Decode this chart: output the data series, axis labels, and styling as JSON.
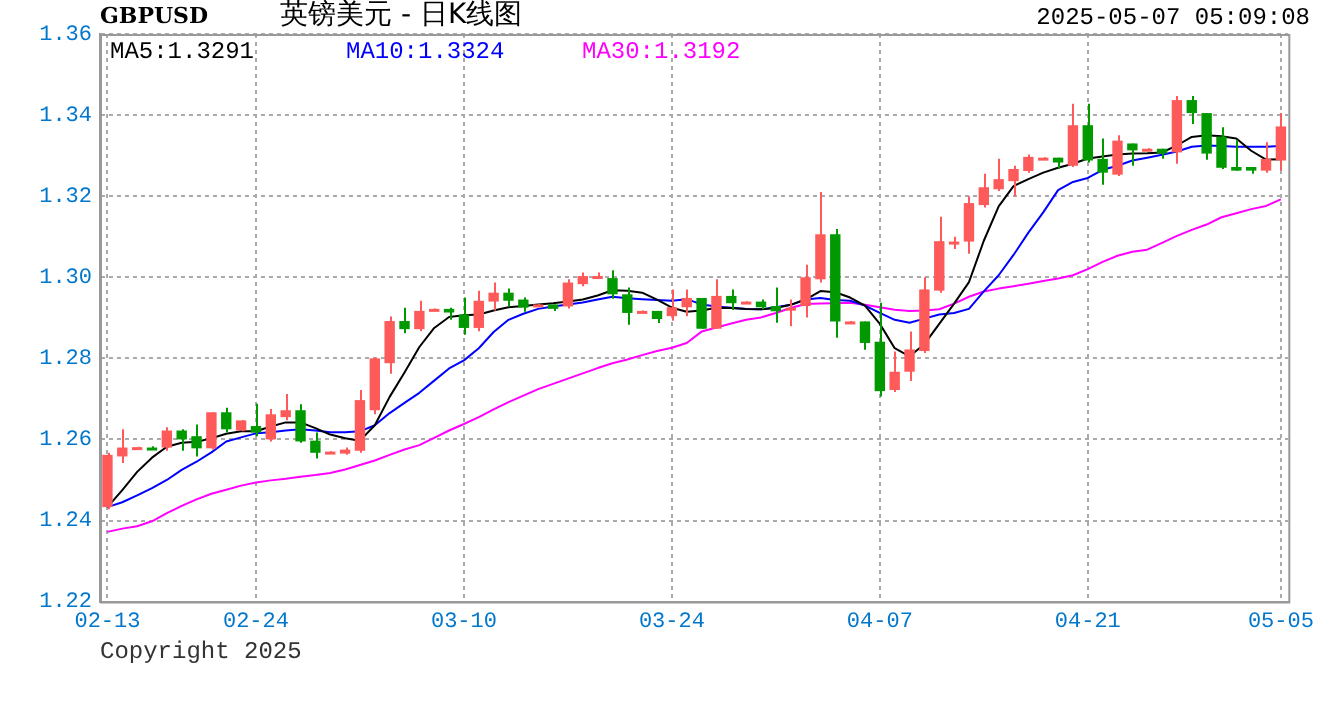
{
  "chart_data": {
    "type": "candlestick",
    "title": "英镑美元 - 日K线图",
    "subtitle": "GBPUSD",
    "annotations": [
      "2025-05-07 05:09:08",
      "Copyright 2025"
    ],
    "categories": [
      "02-13",
      null,
      null,
      null,
      null,
      null,
      null,
      null,
      null,
      null,
      "02-24",
      null,
      null,
      null,
      null,
      null,
      null,
      null,
      null,
      null,
      null,
      null,
      null,
      null,
      "03-10",
      null,
      null,
      null,
      null,
      null,
      null,
      null,
      null,
      null,
      null,
      null,
      null,
      null,
      "03-24",
      null,
      null,
      null,
      null,
      null,
      null,
      null,
      null,
      null,
      null,
      null,
      null,
      null,
      "04-07",
      null,
      null,
      null,
      null,
      null,
      null,
      null,
      null,
      null,
      null,
      null,
      null,
      null,
      "04-21",
      null,
      null,
      null,
      null,
      null,
      null,
      null,
      null,
      null,
      null,
      null,
      null,
      "05-05"
    ],
    "ohlc": [
      [
        1.2433,
        1.2567,
        1.2428,
        1.2562
      ],
      [
        1.2558,
        1.2625,
        1.2542,
        1.258
      ],
      [
        1.258,
        1.2582,
        1.2578,
        1.2581
      ],
      [
        1.258,
        1.2583,
        1.2575,
        1.2578
      ],
      [
        1.258,
        1.263,
        1.2572,
        1.2622
      ],
      [
        1.2622,
        1.2625,
        1.2572,
        1.26
      ],
      [
        1.2608,
        1.2637,
        1.2558,
        1.2578
      ],
      [
        1.2578,
        1.2667,
        1.2575,
        1.2667
      ],
      [
        1.2667,
        1.2678,
        1.2617,
        1.2625
      ],
      [
        1.2622,
        1.2647,
        1.262,
        1.2647
      ],
      [
        1.2633,
        1.2688,
        1.2608,
        1.2617
      ],
      [
        1.26,
        1.2675,
        1.2595,
        1.2662
      ],
      [
        1.2655,
        1.2712,
        1.2647,
        1.2672
      ],
      [
        1.2672,
        1.2687,
        1.2592,
        1.2595
      ],
      [
        1.2597,
        1.2617,
        1.2553,
        1.2567
      ],
      [
        1.2568,
        1.2571,
        1.2567,
        1.257
      ],
      [
        1.2565,
        1.258,
        1.2562,
        1.2575
      ],
      [
        1.2572,
        1.2722,
        1.2567,
        1.2697
      ],
      [
        1.2672,
        1.2802,
        1.2662,
        1.28
      ],
      [
        1.2788,
        1.2903,
        1.2762,
        1.2892
      ],
      [
        1.2892,
        1.2925,
        1.2862,
        1.2872
      ],
      [
        1.2872,
        1.2942,
        1.2867,
        1.2917
      ],
      [
        1.2921,
        1.2923,
        1.292,
        1.2922
      ],
      [
        1.2922,
        1.2925,
        1.2895,
        1.2913
      ],
      [
        1.2908,
        1.295,
        1.2858,
        1.2875
      ],
      [
        1.2875,
        1.2967,
        1.2867,
        1.2942
      ],
      [
        1.294,
        1.2987,
        1.2918,
        1.2962
      ],
      [
        1.2962,
        1.2972,
        1.2928,
        1.2942
      ],
      [
        1.2945,
        1.295,
        1.2915,
        1.2925
      ],
      [
        1.2932,
        1.2934,
        1.2931,
        1.2933
      ],
      [
        1.2933,
        1.2933,
        1.2917,
        1.2922
      ],
      [
        1.2928,
        1.2995,
        1.2923,
        1.2987
      ],
      [
        1.2983,
        1.3012,
        1.2978,
        1.3003
      ],
      [
        1.3,
        1.3012,
        1.2997,
        1.3003
      ],
      [
        1.2998,
        1.3017,
        1.2947,
        1.2958
      ],
      [
        1.2958,
        1.2975,
        1.2883,
        1.2912
      ],
      [
        1.2916,
        1.2918,
        1.2915,
        1.2917
      ],
      [
        1.2917,
        1.2917,
        1.2887,
        1.2897
      ],
      [
        1.2904,
        1.297,
        1.2893,
        1.2926
      ],
      [
        1.2926,
        1.297,
        1.2904,
        1.2949
      ],
      [
        1.2949,
        1.2949,
        1.2873,
        1.2873
      ],
      [
        1.2873,
        1.2995,
        1.2873,
        1.2954
      ],
      [
        1.2954,
        1.297,
        1.2919,
        1.2936
      ],
      [
        1.2939,
        1.2941,
        1.2938,
        1.294
      ],
      [
        1.294,
        1.2945,
        1.2921,
        1.2926
      ],
      [
        1.2929,
        1.2975,
        1.2888,
        1.2916
      ],
      [
        1.292,
        1.2945,
        1.2879,
        1.2925
      ],
      [
        1.2929,
        1.3031,
        1.2901,
        1.3
      ],
      [
        1.2995,
        1.321,
        1.2987,
        1.3106
      ],
      [
        1.3106,
        1.3119,
        1.2851,
        1.2891
      ],
      [
        1.289,
        1.2892,
        1.2889,
        1.2891
      ],
      [
        1.2891,
        1.2891,
        1.2821,
        1.2838
      ],
      [
        1.2841,
        1.2937,
        1.2706,
        1.2719
      ],
      [
        1.2722,
        1.2817,
        1.2717,
        1.2767
      ],
      [
        1.2767,
        1.2866,
        1.2744,
        1.2822
      ],
      [
        1.2818,
        1.3,
        1.2813,
        1.297
      ],
      [
        1.2967,
        1.3149,
        1.2962,
        1.3089
      ],
      [
        1.3085,
        1.31,
        1.307,
        1.3088
      ],
      [
        1.3088,
        1.32,
        1.3058,
        1.3183
      ],
      [
        1.3178,
        1.3255,
        1.3172,
        1.3222
      ],
      [
        1.3217,
        1.3292,
        1.3213,
        1.3242
      ],
      [
        1.3237,
        1.3275,
        1.32,
        1.3267
      ],
      [
        1.3262,
        1.3303,
        1.3258,
        1.3297
      ],
      [
        1.3294,
        1.3296,
        1.3293,
        1.3295
      ],
      [
        1.3295,
        1.3295,
        1.3267,
        1.3283
      ],
      [
        1.3275,
        1.3428,
        1.3272,
        1.3375
      ],
      [
        1.3375,
        1.3428,
        1.3283,
        1.3288
      ],
      [
        1.3292,
        1.3342,
        1.3228,
        1.3258
      ],
      [
        1.3253,
        1.335,
        1.325,
        1.3337
      ],
      [
        1.333,
        1.333,
        1.3275,
        1.3313
      ],
      [
        1.3316,
        1.3318,
        1.3315,
        1.3317
      ],
      [
        1.3317,
        1.3317,
        1.3292,
        1.3305
      ],
      [
        1.3308,
        1.3447,
        1.328,
        1.3437
      ],
      [
        1.3437,
        1.3447,
        1.3378,
        1.3405
      ],
      [
        1.3405,
        1.3405,
        1.329,
        1.3305
      ],
      [
        1.3347,
        1.337,
        1.3267,
        1.327
      ],
      [
        1.3272,
        1.3338,
        1.3263,
        1.3263
      ],
      [
        1.3272,
        1.3272,
        1.3255,
        1.3263
      ],
      [
        1.3263,
        1.3333,
        1.3258,
        1.3292
      ],
      [
        1.3288,
        1.3405,
        1.3263,
        1.3372
      ]
    ],
    "colors": [
      "#ff5a5a",
      "#ff5a5a",
      "#ff5a5a",
      "#009900",
      "#ff5a5a",
      "#009900",
      "#009900",
      "#ff5a5a",
      "#009900",
      "#ff5a5a",
      "#009900",
      "#ff5a5a",
      "#ff5a5a",
      "#009900",
      "#009900",
      "#ff5a5a",
      "#ff5a5a",
      "#ff5a5a",
      "#ff5a5a",
      "#ff5a5a",
      "#009900",
      "#ff5a5a",
      "#ff5a5a",
      "#009900",
      "#009900",
      "#ff5a5a",
      "#ff5a5a",
      "#009900",
      "#009900",
      "#ff5a5a",
      "#009900",
      "#ff5a5a",
      "#ff5a5a",
      "#ff5a5a",
      "#009900",
      "#009900",
      "#ff5a5a",
      "#009900",
      "#ff5a5a",
      "#ff5a5a",
      "#009900",
      "#ff5a5a",
      "#009900",
      "#ff5a5a",
      "#009900",
      "#009900",
      "#ff5a5a",
      "#ff5a5a",
      "#ff5a5a",
      "#009900",
      "#ff5a5a",
      "#009900",
      "#009900",
      "#ff5a5a",
      "#ff5a5a",
      "#ff5a5a",
      "#ff5a5a",
      "#ff5a5a",
      "#ff5a5a",
      "#ff5a5a",
      "#ff5a5a",
      "#ff5a5a",
      "#ff5a5a",
      "#ff5a5a",
      "#009900",
      "#ff5a5a",
      "#009900",
      "#009900",
      "#ff5a5a",
      "#009900",
      "#ff5a5a",
      "#009900",
      "#ff5a5a",
      "#009900",
      "#009900",
      "#009900",
      "#009900",
      "#009900",
      "#ff5a5a",
      "#ff5a5a"
    ],
    "series": [
      {
        "name": "MA5:1.3291",
        "type": "line",
        "color": "#000000",
        "values": [
          1.2433,
          1.2475,
          1.252,
          1.2555,
          1.2582,
          1.2592,
          1.2594,
          1.2603,
          1.2614,
          1.262,
          1.262,
          1.2632,
          1.2642,
          1.2642,
          1.2628,
          1.2612,
          1.2603,
          1.2597,
          1.2635,
          1.2705,
          1.2765,
          1.2828,
          1.2875,
          1.2902,
          1.2906,
          1.2908,
          1.2918,
          1.2926,
          1.2929,
          1.2933,
          1.2936,
          1.294,
          1.2945,
          1.2955,
          1.2968,
          1.2967,
          1.2962,
          1.2945,
          1.2925,
          1.2915,
          1.2918,
          1.2925,
          1.2924,
          1.2922,
          1.2921,
          1.2924,
          1.2932,
          1.2945,
          1.2966,
          1.2963,
          1.295,
          1.293,
          1.2885,
          1.2825,
          1.2805,
          1.2835,
          1.2885,
          1.2935,
          1.2988,
          1.309,
          1.3175,
          1.3225,
          1.3242,
          1.3258,
          1.327,
          1.328,
          1.3293,
          1.3298,
          1.3303,
          1.3305,
          1.3306,
          1.3308,
          1.3325,
          1.3346,
          1.335,
          1.3348,
          1.3342,
          1.3312,
          1.329,
          1.3291
        ]
      },
      {
        "name": "MA10:1.3324",
        "type": "line",
        "color": "#0000ff",
        "values": [
          1.2433,
          1.2445,
          1.2462,
          1.248,
          1.25,
          1.2525,
          1.2545,
          1.2568,
          1.2595,
          1.2605,
          1.2615,
          1.2618,
          1.2622,
          1.2625,
          1.2622,
          1.2618,
          1.2618,
          1.262,
          1.2635,
          1.2665,
          1.269,
          1.2715,
          1.2745,
          1.2775,
          1.2795,
          1.2825,
          1.2865,
          1.2895,
          1.291,
          1.2922,
          1.2928,
          1.2933,
          1.2938,
          1.2945,
          1.2952,
          1.2948,
          1.2946,
          1.2944,
          1.2942,
          1.2946,
          1.2933,
          1.2928,
          1.2925,
          1.2922,
          1.2921,
          1.2926,
          1.2932,
          1.2945,
          1.2949,
          1.2944,
          1.2942,
          1.293,
          1.2912,
          1.2895,
          1.2888,
          1.2898,
          1.2908,
          1.2912,
          1.2922,
          1.2965,
          1.3005,
          1.3055,
          1.311,
          1.316,
          1.3215,
          1.3235,
          1.3245,
          1.3265,
          1.3275,
          1.3288,
          1.3295,
          1.3302,
          1.331,
          1.3322,
          1.3325,
          1.3324,
          1.3322,
          1.3322,
          1.3322,
          1.3324
        ]
      },
      {
        "name": "MA30:1.3192",
        "type": "line",
        "color": "#ff00ff",
        "values": [
          1.2372,
          1.238,
          1.2386,
          1.2398,
          1.2418,
          1.2436,
          1.2452,
          1.2466,
          1.2476,
          1.2486,
          1.2494,
          1.2499,
          1.2503,
          1.2508,
          1.2512,
          1.2517,
          1.2526,
          1.2537,
          1.2548,
          1.2562,
          1.2575,
          1.2586,
          1.2604,
          1.2622,
          1.2638,
          1.2655,
          1.2674,
          1.2692,
          1.2708,
          1.2724,
          1.2737,
          1.275,
          1.2763,
          1.2776,
          1.2788,
          1.2797,
          1.2808,
          1.2818,
          1.2826,
          1.2838,
          1.2866,
          1.2876,
          1.2886,
          1.2895,
          1.2901,
          1.2912,
          1.2924,
          1.2934,
          1.2935,
          1.2936,
          1.2937,
          1.2932,
          1.2926,
          1.292,
          1.2917,
          1.2918,
          1.2921,
          1.2935,
          1.2952,
          1.2965,
          1.2972,
          1.2978,
          1.2984,
          1.2991,
          1.2997,
          1.3005,
          1.302,
          1.3038,
          1.3053,
          1.3063,
          1.3068,
          1.3085,
          1.3102,
          1.3117,
          1.313,
          1.3148,
          1.3158,
          1.3168,
          1.3176,
          1.3192
        ]
      }
    ],
    "ylim": [
      1.22,
      1.36
    ],
    "yticks": [
      1.22,
      1.24,
      1.26,
      1.28,
      {
        "value": 1.3,
        "label": "1.30"
      },
      1.32,
      1.34,
      1.36
    ],
    "grid": true,
    "legend": "top left",
    "marker": "none",
    "line_style": "solid"
  }
}
